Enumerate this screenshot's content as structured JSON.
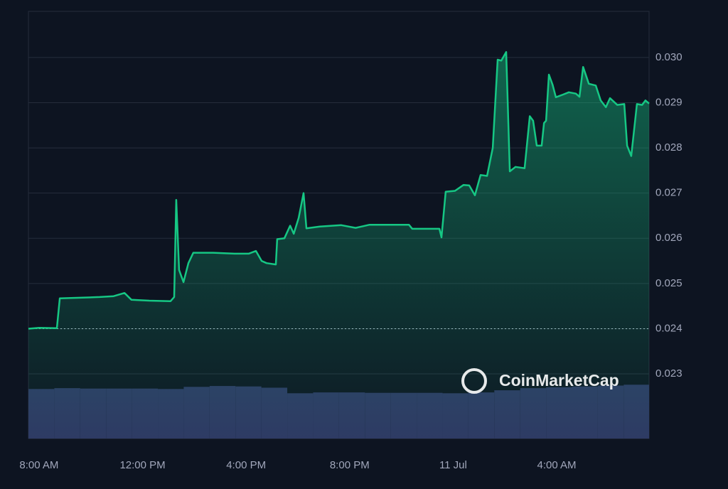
{
  "chart_data": {
    "type": "line",
    "xlim": [
      -0.41,
      23.57
    ],
    "xticks": [
      {
        "value": 0,
        "label": "8:00 AM"
      },
      {
        "value": 4,
        "label": "12:00 PM"
      },
      {
        "value": 8,
        "label": "4:00 PM"
      },
      {
        "value": 12,
        "label": "8:00 PM"
      },
      {
        "value": 16,
        "label": "11 Jul"
      },
      {
        "value": 20,
        "label": "4:00 AM"
      }
    ],
    "ylim": [
      0.02157,
      0.03102
    ],
    "yticks": [
      0.023,
      0.024,
      0.025,
      0.026,
      0.027,
      0.028,
      0.029,
      {
        "value": 0.03,
        "label": "0.030"
      }
    ],
    "y2lim": [
      0,
      100
    ],
    "grid": true,
    "baseline": 0.024,
    "watermark": "CoinMarketCap",
    "series": [
      {
        "color": "#16c784",
        "x": [
          -0.41,
          0,
          0.69,
          0.8,
          1.24,
          1.79,
          2.34,
          2.88,
          3.3,
          3.57,
          4.26,
          5.08,
          5.22,
          5.3,
          5.41,
          5.58,
          5.77,
          5.96,
          6.73,
          7.55,
          8.1,
          8.38,
          8.6,
          8.79,
          9.15,
          9.2,
          9.48,
          9.7,
          9.84,
          10.03,
          10.22,
          10.33,
          10.85,
          11.68,
          12.23,
          12.77,
          13.6,
          14.29,
          14.42,
          14.97,
          15.47,
          15.55,
          15.71,
          16.07,
          16.4,
          16.62,
          16.84,
          17.06,
          17.31,
          17.53,
          17.72,
          17.86,
          18.05,
          18.19,
          18.41,
          18.76,
          18.96,
          19.09,
          19.23,
          19.42,
          19.51,
          19.59,
          19.7,
          19.84,
          19.97,
          20.25,
          20.47,
          20.74,
          20.88,
          21.02,
          21.24,
          21.51,
          21.7,
          21.9,
          22.06,
          22.34,
          22.61,
          22.72,
          22.88,
          23.1,
          23.3,
          23.43,
          23.57
        ],
        "values": [
          0.024,
          0.02402,
          0.02401,
          0.02467,
          0.02468,
          0.02469,
          0.0247,
          0.02472,
          0.02479,
          0.02464,
          0.02462,
          0.02461,
          0.0247,
          0.02685,
          0.0253,
          0.02503,
          0.02545,
          0.02568,
          0.02568,
          0.02566,
          0.02566,
          0.02572,
          0.0255,
          0.02545,
          0.02542,
          0.02598,
          0.026,
          0.02628,
          0.0261,
          0.02645,
          0.027,
          0.02622,
          0.02626,
          0.02629,
          0.02623,
          0.0263,
          0.0263,
          0.0263,
          0.02621,
          0.02621,
          0.02621,
          0.02602,
          0.02703,
          0.02705,
          0.02718,
          0.02717,
          0.02695,
          0.0274,
          0.02738,
          0.028,
          0.02995,
          0.02993,
          0.03012,
          0.02748,
          0.02758,
          0.02755,
          0.0287,
          0.0286,
          0.02805,
          0.02805,
          0.02855,
          0.0286,
          0.02962,
          0.0294,
          0.02912,
          0.02918,
          0.02923,
          0.0292,
          0.02913,
          0.02979,
          0.02942,
          0.02938,
          0.02905,
          0.0289,
          0.0291,
          0.02895,
          0.02897,
          0.02805,
          0.02782,
          0.02897,
          0.02895,
          0.02905,
          0.02898
        ]
      },
      {
        "type": "bar",
        "axis": "y2",
        "color": "#2e3863",
        "x": [
          -0.41,
          0.59,
          1.59,
          2.59,
          3.59,
          4.59,
          5.59,
          6.59,
          7.59,
          8.59,
          9.59,
          10.59,
          11.59,
          12.59,
          13.59,
          14.59,
          15.59,
          16.59,
          17.59,
          18.59,
          19.59,
          20.59,
          21.59,
          22.59
        ],
        "values": [
          11.6,
          11.8,
          11.7,
          11.7,
          11.7,
          11.6,
          12.1,
          12.3,
          12.2,
          11.9,
          10.6,
          10.8,
          10.8,
          10.7,
          10.7,
          10.7,
          10.6,
          10.8,
          11.3,
          11.8,
          12.0,
          12.2,
          12.4,
          12.6
        ]
      }
    ]
  }
}
